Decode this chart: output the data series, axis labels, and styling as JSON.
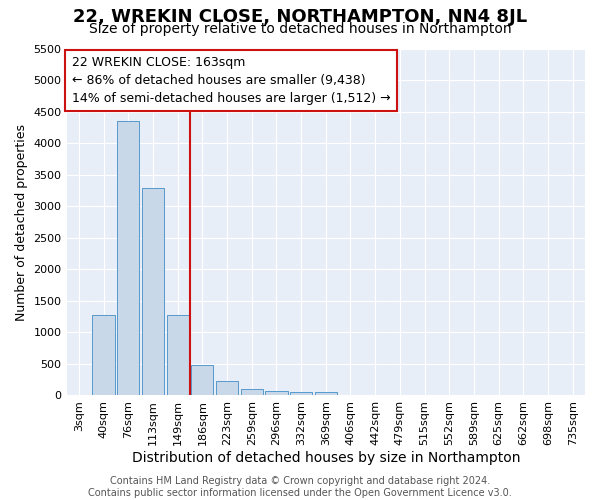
{
  "title": "22, WREKIN CLOSE, NORTHAMPTON, NN4 8JL",
  "subtitle": "Size of property relative to detached houses in Northampton",
  "xlabel": "Distribution of detached houses by size in Northampton",
  "ylabel": "Number of detached properties",
  "bar_labels": [
    "3sqm",
    "40sqm",
    "76sqm",
    "113sqm",
    "149sqm",
    "186sqm",
    "223sqm",
    "259sqm",
    "296sqm",
    "332sqm",
    "369sqm",
    "406sqm",
    "442sqm",
    "479sqm",
    "515sqm",
    "552sqm",
    "589sqm",
    "625sqm",
    "662sqm",
    "698sqm",
    "735sqm"
  ],
  "bar_values": [
    0,
    1270,
    4350,
    3300,
    1270,
    480,
    230,
    100,
    75,
    60,
    60,
    0,
    0,
    0,
    0,
    0,
    0,
    0,
    0,
    0,
    0
  ],
  "bar_color": "#c8d8e8",
  "bar_edge_color": "#5599cc",
  "ylim": [
    0,
    5500
  ],
  "yticks": [
    0,
    500,
    1000,
    1500,
    2000,
    2500,
    3000,
    3500,
    4000,
    4500,
    5000,
    5500
  ],
  "vline_x": 4.5,
  "vline_color": "#cc1111",
  "annotation_text": "22 WREKIN CLOSE: 163sqm\n← 86% of detached houses are smaller (9,438)\n14% of semi-detached houses are larger (1,512) →",
  "annotation_box_facecolor": "#ffffff",
  "annotation_box_edgecolor": "#cc1111",
  "background_color": "#ffffff",
  "plot_bg_color": "#e8eef8",
  "grid_color": "#ffffff",
  "footer_text": "Contains HM Land Registry data © Crown copyright and database right 2024.\nContains public sector information licensed under the Open Government Licence v3.0.",
  "title_fontsize": 13,
  "subtitle_fontsize": 10,
  "ylabel_fontsize": 9,
  "xlabel_fontsize": 10,
  "tick_fontsize": 8,
  "annotation_fontsize": 9,
  "footer_fontsize": 7
}
